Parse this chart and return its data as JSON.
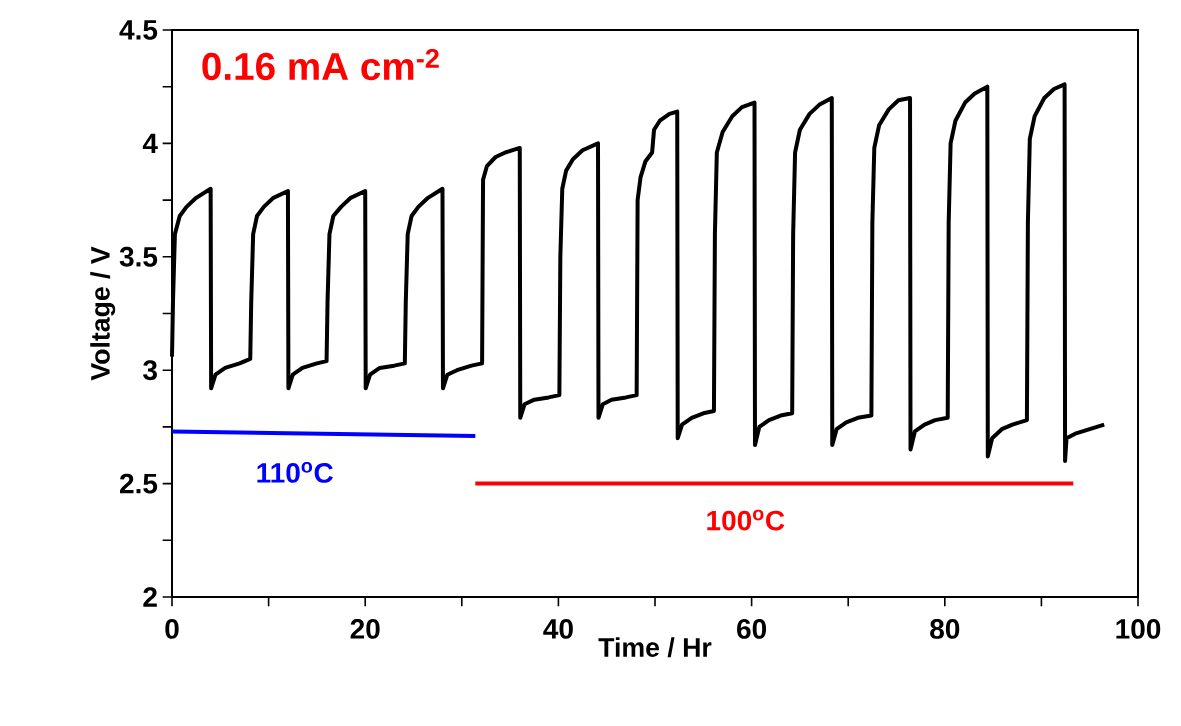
{
  "chart_data": {
    "type": "line",
    "xlabel": "Time / Hr",
    "ylabel": "Voltage / V",
    "annotations": [
      "0.16 mA cm$^{-2}$"
    ],
    "xlim": [
      0,
      100
    ],
    "xticks": [
      0,
      20,
      40,
      60,
      80,
      100
    ],
    "ylim": [
      2,
      4.5
    ],
    "yticks": [
      2,
      2.5,
      3,
      3.5,
      4,
      4.5
    ],
    "series": [
      {
        "color": "#000000",
        "x": [
          0,
          0.1,
          0.3,
          0.8,
          1.5,
          2.5,
          4.0,
          4.05,
          4.5,
          5.5,
          7,
          8.1,
          8.2,
          8.4,
          8.8,
          9.5,
          10.5,
          12.0,
          12.05,
          12.5,
          13.5,
          15,
          16.0,
          16.1,
          16.3,
          16.7,
          17.5,
          18.5,
          20.0,
          20.05,
          20.5,
          21.5,
          23,
          24.1,
          24.2,
          24.4,
          24.8,
          25.5,
          26.5,
          28.0,
          28.05,
          28.5,
          29.5,
          31,
          32.1,
          32.2,
          32.6,
          33.5,
          34.5,
          36.0,
          36.05,
          36.5,
          37.5,
          39,
          40.1,
          40.2,
          40.4,
          40.8,
          41.5,
          42.5,
          44.1,
          44.15,
          44.6,
          45.5,
          47,
          48.1,
          48.2,
          48.5,
          49.0,
          49.7,
          49.9,
          50.5,
          51.5,
          52.3,
          52.35,
          52.8,
          53.8,
          55,
          56.1,
          56.2,
          56.4,
          57,
          58,
          59,
          60.3,
          60.35,
          60.8,
          61.8,
          63,
          64.2,
          64.3,
          64.5,
          65,
          66,
          67,
          68.3,
          68.35,
          68.8,
          69.8,
          71,
          72.4,
          72.5,
          72.7,
          73.2,
          74.2,
          75.2,
          76.4,
          76.45,
          76.9,
          77.9,
          79,
          80.3,
          80.4,
          80.6,
          81.1,
          82.1,
          83.1,
          84.4,
          84.45,
          84.9,
          85.9,
          87,
          88.5,
          88.6,
          88.8,
          89.3,
          90.3,
          91.3,
          92.4,
          92.45,
          92.6,
          93.5,
          95,
          96.5
        ],
        "values": [
          3.06,
          3.3,
          3.6,
          3.68,
          3.72,
          3.76,
          3.8,
          2.92,
          2.98,
          3.01,
          3.03,
          3.05,
          3.3,
          3.6,
          3.68,
          3.72,
          3.76,
          3.79,
          2.92,
          2.98,
          3.01,
          3.03,
          3.04,
          3.3,
          3.6,
          3.68,
          3.72,
          3.76,
          3.79,
          2.92,
          2.98,
          3.01,
          3.02,
          3.03,
          3.3,
          3.6,
          3.68,
          3.72,
          3.76,
          3.8,
          2.92,
          2.98,
          3.0,
          3.02,
          3.03,
          3.84,
          3.9,
          3.94,
          3.96,
          3.98,
          2.79,
          2.85,
          2.87,
          2.88,
          2.89,
          3.5,
          3.8,
          3.88,
          3.93,
          3.97,
          4.0,
          2.79,
          2.85,
          2.87,
          2.88,
          2.89,
          3.75,
          3.85,
          3.92,
          3.96,
          4.06,
          4.1,
          4.13,
          4.14,
          2.7,
          2.76,
          2.79,
          2.81,
          2.82,
          3.6,
          3.96,
          4.05,
          4.12,
          4.16,
          4.18,
          2.67,
          2.75,
          2.78,
          2.8,
          2.81,
          3.6,
          3.96,
          4.06,
          4.13,
          4.17,
          4.2,
          2.67,
          2.74,
          2.77,
          2.79,
          2.8,
          3.65,
          3.98,
          4.08,
          4.15,
          4.19,
          4.2,
          2.65,
          2.73,
          2.76,
          2.78,
          2.79,
          3.65,
          4.0,
          4.1,
          4.18,
          4.22,
          4.25,
          2.62,
          2.7,
          2.74,
          2.76,
          2.78,
          3.65,
          4.02,
          4.12,
          4.2,
          4.24,
          4.26,
          2.6,
          2.7,
          2.72,
          2.74,
          2.76
        ]
      },
      {
        "name": "110$^{o}$C",
        "color": "#0000ff",
        "x": [
          0,
          31.4
        ],
        "values": [
          2.73,
          2.71
        ]
      },
      {
        "name": "100$^{o}$C",
        "color": "#ff0000",
        "x": [
          31.4,
          93.3
        ],
        "values": [
          2.5,
          2.5
        ]
      }
    ]
  }
}
